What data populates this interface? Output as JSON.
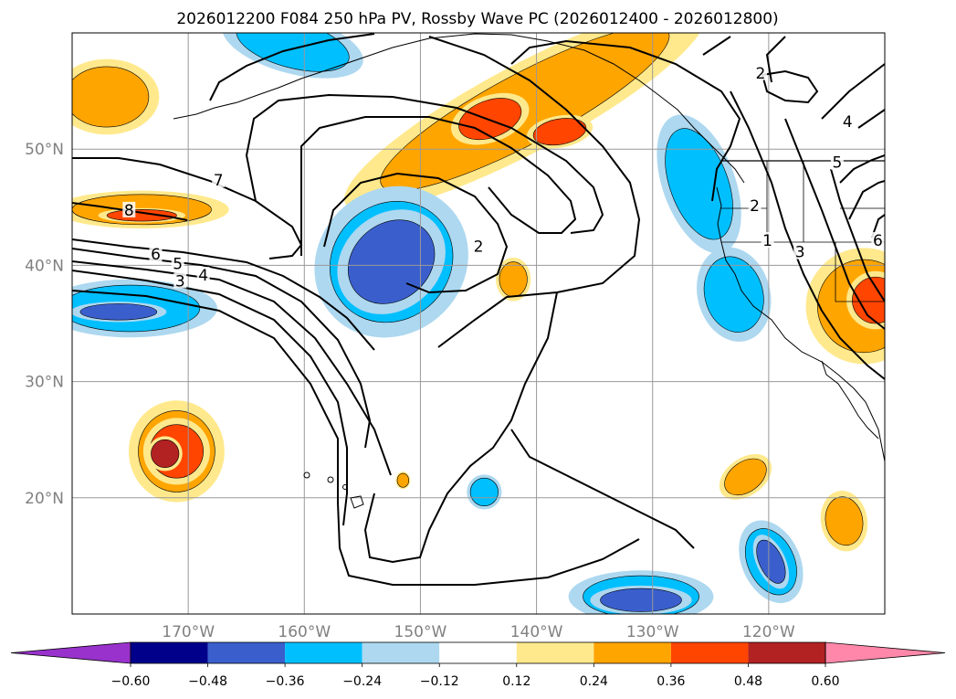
{
  "chart_data": {
    "type": "map-contour",
    "title": "2026012200 F084 250 hPa PV, Rossby Wave PC (2026012400 - 2026012800)",
    "lon_range": [
      -180,
      -110
    ],
    "lat_range": [
      10,
      60
    ],
    "xticks": [
      {
        "lon": -170,
        "label": "170°W"
      },
      {
        "lon": -160,
        "label": "160°W"
      },
      {
        "lon": -150,
        "label": "150°W"
      },
      {
        "lon": -140,
        "label": "140°W"
      },
      {
        "lon": -130,
        "label": "130°W"
      },
      {
        "lon": -120,
        "label": "120°W"
      }
    ],
    "yticks": [
      {
        "lat": 50,
        "label": "50°N"
      },
      {
        "lat": 40,
        "label": "40°N"
      },
      {
        "lat": 30,
        "label": "30°N"
      },
      {
        "lat": 20,
        "label": "20°N"
      }
    ],
    "grid": true,
    "colorbar": {
      "levels": [
        -0.6,
        -0.48,
        -0.36,
        -0.24,
        -0.12,
        0.12,
        0.24,
        0.36,
        0.48,
        0.6
      ],
      "labels": [
        "−0.60",
        "−0.48",
        "−0.36",
        "−0.24",
        "−0.12",
        "0.12",
        "0.24",
        "0.36",
        "0.48",
        "0.60"
      ],
      "colors": [
        "#9932cc",
        "#00008b",
        "#3a5fcd",
        "#00bfff",
        "#add8f0",
        "#ffffff",
        "#ffe98c",
        "#ffa500",
        "#ff4500",
        "#b22222",
        "#ff88aa"
      ]
    },
    "pv_contour_labels": [
      {
        "value": "2",
        "lon": -120.7,
        "lat": 56.4
      },
      {
        "value": "7",
        "lon": -167.4,
        "lat": 47.2
      },
      {
        "value": "8",
        "lon": -175.1,
        "lat": 44.6
      },
      {
        "value": "6",
        "lon": -172.8,
        "lat": 40.8
      },
      {
        "value": "5",
        "lon": -170.9,
        "lat": 40.0
      },
      {
        "value": "4",
        "lon": -168.7,
        "lat": 39.0
      },
      {
        "value": "3",
        "lon": -170.7,
        "lat": 38.5
      },
      {
        "value": "2",
        "lon": -145.0,
        "lat": 41.5
      },
      {
        "value": "2",
        "lon": -121.2,
        "lat": 45.0
      },
      {
        "value": "1",
        "lon": -120.1,
        "lat": 42.0
      },
      {
        "value": "3",
        "lon": -117.3,
        "lat": 41.0
      },
      {
        "value": "4",
        "lon": -113.2,
        "lat": 52.2
      },
      {
        "value": "5",
        "lon": -114.1,
        "lat": 48.7
      },
      {
        "value": "6",
        "lon": -110.6,
        "lat": 42.0
      }
    ],
    "anomaly_blobs": [
      {
        "name": "orange-west-55n",
        "color": "#ffa500",
        "lon": -177,
        "lat": 54.5,
        "rx": 3.6,
        "ry": 2.6,
        "rot": 0
      },
      {
        "name": "orange-west-45n",
        "color": "#ffa500",
        "lon": -174,
        "lat": 44.8,
        "rx": 6,
        "ry": 1.3,
        "rot": 0
      },
      {
        "name": "red-west-45n",
        "color": "#ff4500",
        "lon": -174,
        "lat": 44.3,
        "rx": 3,
        "ry": 0.5,
        "rot": 0
      },
      {
        "name": "blue-west-36n",
        "color": "#00bfff",
        "lon": -175,
        "lat": 36.3,
        "rx": 6,
        "ry": 2,
        "rot": 0
      },
      {
        "name": "darkblue-west-36n",
        "color": "#3a5fcd",
        "lon": -176,
        "lat": 36.0,
        "rx": 3.3,
        "ry": 0.7,
        "rot": 0
      },
      {
        "name": "blue-top-59n",
        "color": "#00bfff",
        "lon": -161,
        "lat": 59.0,
        "rx": 5,
        "ry": 2,
        "rot": 15
      },
      {
        "name": "orange-gulf",
        "color": "#ffa500",
        "lon": -141,
        "lat": 53.5,
        "rx": 14,
        "ry": 3,
        "rot": -28
      },
      {
        "name": "red-gulf-1",
        "color": "#ff4500",
        "lon": -144,
        "lat": 52.6,
        "rx": 2.8,
        "ry": 1.6,
        "rot": -20
      },
      {
        "name": "red-gulf-2",
        "color": "#ff4500",
        "lon": -138,
        "lat": 51.5,
        "rx": 2.3,
        "ry": 1.1,
        "rot": -10
      },
      {
        "name": "blue-mid-40n",
        "color": "#00bfff",
        "lon": -152.5,
        "lat": 40.3,
        "rx": 5.5,
        "ry": 5,
        "rot": -40
      },
      {
        "name": "darkblue-mid-40n",
        "color": "#3a5fcd",
        "lon": -152.5,
        "lat": 40.3,
        "rx": 4,
        "ry": 3.3,
        "rot": -40
      },
      {
        "name": "orange-small-39n",
        "color": "#ffa500",
        "lon": -142,
        "lat": 38.8,
        "rx": 1.2,
        "ry": 1.5,
        "rot": 0
      },
      {
        "name": "blue-bc-coast",
        "color": "#00bfff",
        "lon": -126,
        "lat": 47.0,
        "rx": 2.5,
        "ry": 5,
        "rot": -20
      },
      {
        "name": "blue-ca-coast",
        "color": "#00bfff",
        "lon": -123,
        "lat": 37.5,
        "rx": 2.5,
        "ry": 3.3,
        "rot": -15
      },
      {
        "name": "orange-east-37n",
        "color": "#ffa500",
        "lon": -111.8,
        "lat": 36.5,
        "rx": 4,
        "ry": 4,
        "rot": 0
      },
      {
        "name": "red-east-37n",
        "color": "#ff4500",
        "lon": -110.8,
        "lat": 37.0,
        "rx": 2,
        "ry": 2,
        "rot": 0
      },
      {
        "name": "orange-hawaii-n",
        "color": "#ffa500",
        "lon": -171,
        "lat": 24.0,
        "rx": 3.3,
        "ry": 3.5,
        "rot": 0
      },
      {
        "name": "red-hawaii-n",
        "color": "#ff4500",
        "lon": -171,
        "lat": 24.0,
        "rx": 2.3,
        "ry": 2.3,
        "rot": 0
      },
      {
        "name": "brown-hawaii-n",
        "color": "#b22222",
        "lon": -172,
        "lat": 23.8,
        "rx": 1.2,
        "ry": 1.2,
        "rot": 0
      },
      {
        "name": "blue-small-20n",
        "color": "#00bfff",
        "lon": -144.5,
        "lat": 20.5,
        "rx": 1.2,
        "ry": 1.2,
        "rot": 0
      },
      {
        "name": "orange-small-21n",
        "color": "#ffa500",
        "lon": -151.5,
        "lat": 21.5,
        "rx": 0.5,
        "ry": 0.6,
        "rot": 0
      },
      {
        "name": "orange-sw-baja-1",
        "color": "#ffa500",
        "lon": -122,
        "lat": 21.8,
        "rx": 2,
        "ry": 1.3,
        "rot": -35
      },
      {
        "name": "orange-sw-baja-2",
        "color": "#ffa500",
        "lon": -113.5,
        "lat": 18.0,
        "rx": 1.6,
        "ry": 2.1,
        "rot": -10
      },
      {
        "name": "blue-south-15n",
        "color": "#00bfff",
        "lon": -119.8,
        "lat": 14.5,
        "rx": 2,
        "ry": 3,
        "rot": -25
      },
      {
        "name": "darkblue-south-15n",
        "color": "#3a5fcd",
        "lon": -119.8,
        "lat": 14.5,
        "rx": 1,
        "ry": 2,
        "rot": -25
      },
      {
        "name": "blue-bottom-11n",
        "color": "#00bfff",
        "lon": -131,
        "lat": 11.5,
        "rx": 5,
        "ry": 1.8,
        "rot": 0
      },
      {
        "name": "darkblue-bottom-11n",
        "color": "#3a5fcd",
        "lon": -131,
        "lat": 11.2,
        "rx": 3.5,
        "ry": 1,
        "rot": 0
      }
    ]
  }
}
